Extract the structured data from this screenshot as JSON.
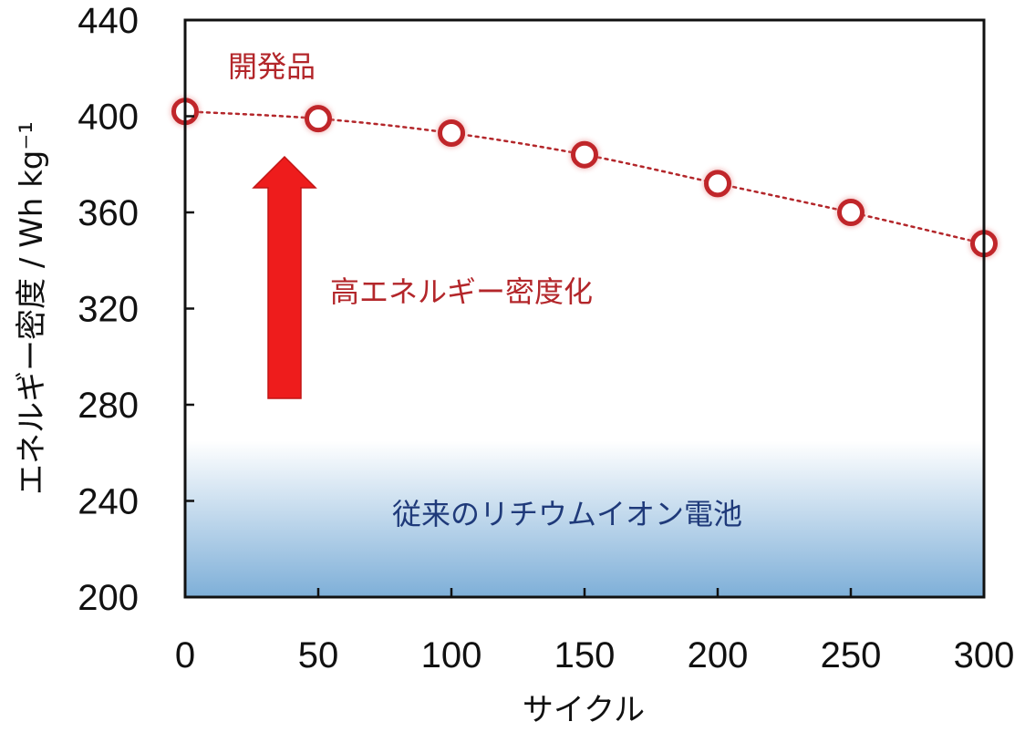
{
  "chart_data": {
    "type": "line",
    "title": "",
    "xlabel": "サイクル",
    "ylabel": "エネルギー密度 / Wh kg⁻¹",
    "xlim": [
      0,
      300
    ],
    "ylim": [
      200,
      440
    ],
    "x_ticks": [
      "0",
      "50",
      "100",
      "150",
      "200",
      "250",
      "300"
    ],
    "y_ticks": [
      "200",
      "240",
      "280",
      "320",
      "360",
      "400",
      "440"
    ],
    "series": [
      {
        "name": "開発品",
        "x": [
          0,
          50,
          100,
          150,
          200,
          250,
          300
        ],
        "y": [
          402,
          399,
          393,
          384,
          372,
          360,
          347
        ]
      }
    ],
    "band": {
      "label": "従来のリチウムイオン電池",
      "y_from": 200,
      "y_to": 265
    },
    "arrow_label": "高エネルギー密度化",
    "grid": false,
    "colors": {
      "line": "#b3262a",
      "marker_edge": "#c0262a",
      "marker_fill": "#ffffff",
      "arrow": "#ee1c1c",
      "band_top": "#ffffff",
      "band_bottom": "#7eafd8"
    }
  }
}
